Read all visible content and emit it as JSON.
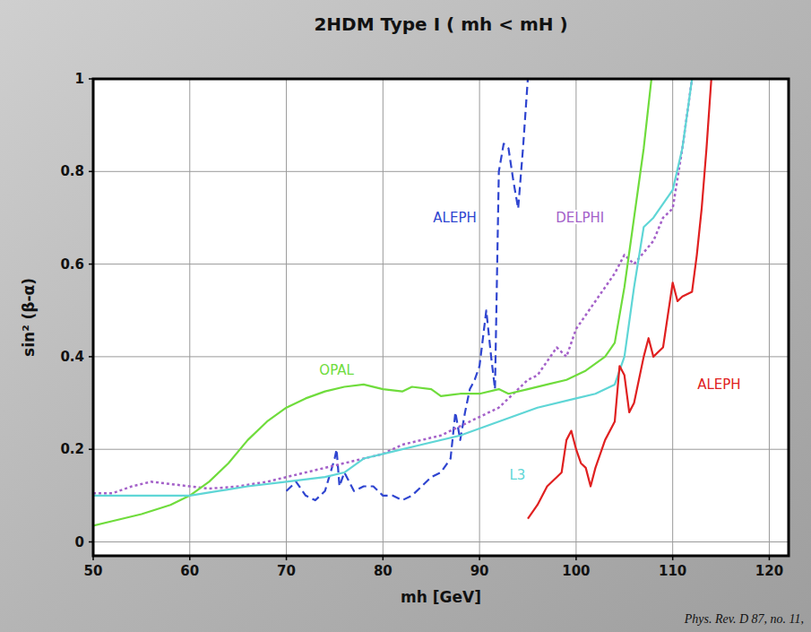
{
  "chart_data": {
    "type": "line",
    "title": "2HDM Type I ( mh < mH )",
    "x_label": "mh [GeV]",
    "y_label": "sin² (β-α)",
    "annotations": [
      "Phys. Rev. D 87, no. 11,"
    ],
    "xlim": [
      50,
      122
    ],
    "ylim": [
      -0.03,
      1.0
    ],
    "xticks": [
      50,
      60,
      70,
      80,
      90,
      100,
      110,
      120
    ],
    "yticks": [
      0,
      0.2,
      0.4,
      0.6,
      0.8,
      1
    ],
    "grid": true,
    "series": [
      {
        "name": "ALEPH",
        "color": "#2f45d0",
        "line_style": "dashed",
        "x": [
          70,
          71,
          72,
          73,
          74,
          75,
          75.2,
          75.5,
          76,
          77,
          78,
          79,
          80,
          81,
          82,
          83,
          84,
          85,
          86,
          87,
          87.5,
          88,
          88.5,
          89,
          89.5,
          90,
          90.7,
          91.2,
          91.6,
          92,
          92.5,
          93,
          93.5,
          94,
          94.5,
          95
        ],
        "values": [
          0.11,
          0.13,
          0.1,
          0.09,
          0.11,
          0.18,
          0.2,
          0.12,
          0.15,
          0.11,
          0.12,
          0.12,
          0.1,
          0.1,
          0.09,
          0.1,
          0.12,
          0.14,
          0.15,
          0.18,
          0.28,
          0.22,
          0.28,
          0.33,
          0.35,
          0.38,
          0.5,
          0.4,
          0.33,
          0.8,
          0.86,
          0.85,
          0.78,
          0.72,
          0.85,
          1.0
        ]
      },
      {
        "name": "DELPHI",
        "color": "#a461c9",
        "line_style": "dotted",
        "x": [
          50,
          52,
          54,
          56,
          58,
          60,
          62,
          65,
          68,
          70,
          72,
          75,
          78,
          80,
          82,
          84,
          86,
          88,
          90,
          92,
          94,
          95,
          96,
          97,
          98,
          99,
          100,
          102,
          104,
          105,
          106,
          108,
          109,
          110,
          111,
          112
        ],
        "values": [
          0.105,
          0.105,
          0.12,
          0.13,
          0.125,
          0.12,
          0.115,
          0.12,
          0.13,
          0.14,
          0.15,
          0.165,
          0.18,
          0.19,
          0.21,
          0.22,
          0.23,
          0.25,
          0.27,
          0.29,
          0.33,
          0.35,
          0.36,
          0.39,
          0.42,
          0.4,
          0.46,
          0.52,
          0.58,
          0.62,
          0.6,
          0.65,
          0.7,
          0.72,
          0.85,
          1.0
        ]
      },
      {
        "name": "OPAL",
        "color": "#6fdc3c",
        "line_style": "solid",
        "x": [
          50,
          52,
          55,
          58,
          60,
          62,
          64,
          66,
          68,
          70,
          72,
          74,
          76,
          78,
          80,
          82,
          83,
          85,
          86,
          88,
          90,
          92,
          93,
          95,
          97,
          99,
          101,
          103,
          104,
          105,
          106,
          107,
          107.8
        ],
        "values": [
          0.035,
          0.045,
          0.06,
          0.08,
          0.1,
          0.13,
          0.17,
          0.22,
          0.26,
          0.29,
          0.31,
          0.325,
          0.335,
          0.34,
          0.33,
          0.325,
          0.335,
          0.33,
          0.315,
          0.32,
          0.32,
          0.33,
          0.32,
          0.33,
          0.34,
          0.35,
          0.37,
          0.4,
          0.43,
          0.55,
          0.7,
          0.85,
          1.0
        ]
      },
      {
        "name": "L3",
        "color": "#5fd6d6",
        "line_style": "solid",
        "x": [
          50,
          55,
          60,
          63,
          66,
          70,
          74,
          76,
          78,
          80,
          84,
          88,
          92,
          96,
          100,
          102,
          104,
          105,
          106,
          107,
          108,
          110,
          111,
          112
        ],
        "values": [
          0.1,
          0.1,
          0.1,
          0.11,
          0.12,
          0.13,
          0.14,
          0.15,
          0.18,
          0.19,
          0.21,
          0.23,
          0.26,
          0.29,
          0.31,
          0.32,
          0.34,
          0.4,
          0.55,
          0.68,
          0.7,
          0.76,
          0.85,
          1.0
        ]
      },
      {
        "name": "ALEPH",
        "color": "#e02020",
        "line_style": "solid",
        "x": [
          95,
          96,
          97,
          98,
          98.5,
          99,
          99.5,
          100,
          100.5,
          101,
          101.5,
          102,
          103,
          104,
          104.5,
          105,
          105.5,
          106,
          107,
          107.5,
          108,
          109,
          110,
          110.5,
          111,
          112,
          112.5,
          113,
          113.5,
          114
        ],
        "values": [
          0.05,
          0.08,
          0.12,
          0.14,
          0.15,
          0.22,
          0.24,
          0.2,
          0.17,
          0.16,
          0.12,
          0.16,
          0.22,
          0.26,
          0.38,
          0.36,
          0.28,
          0.3,
          0.4,
          0.44,
          0.4,
          0.42,
          0.56,
          0.52,
          0.53,
          0.54,
          0.62,
          0.72,
          0.85,
          1.0
        ]
      }
    ]
  }
}
